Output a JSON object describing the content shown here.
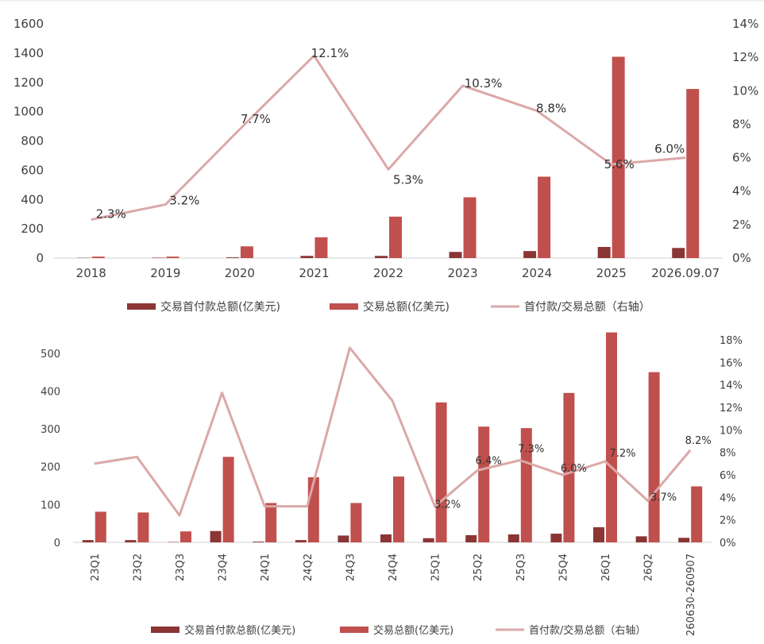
{
  "colors": {
    "deposit": "#8b3535",
    "total": "#c0504d",
    "ratio": "#dba8a8",
    "axis": "#d0d0d0",
    "topline": "#e0e0e0"
  },
  "chart_data": [
    {
      "type": "bar",
      "title": "",
      "categories": [
        "2018",
        "2019",
        "2020",
        "2021",
        "2022",
        "2023",
        "2024",
        "2025",
        "2026.09.07"
      ],
      "ylim": [
        0,
        1600
      ],
      "yticks": [
        "0",
        "200",
        "400",
        "600",
        "800",
        "1000",
        "1200",
        "1400",
        "1600"
      ],
      "y2lim": [
        0,
        0.14
      ],
      "y2ticks": [
        "0%",
        "2%",
        "4%",
        "6%",
        "8%",
        "10%",
        "12%",
        "14%"
      ],
      "series": [
        {
          "name": "交易首付款总额(亿美元)",
          "kind": "bar",
          "axis": "left",
          "values": [
            2,
            3,
            5,
            15,
            15,
            42,
            48,
            76,
            69
          ]
        },
        {
          "name": "交易总额(亿美元)",
          "kind": "bar",
          "axis": "left",
          "values": [
            10,
            10,
            80,
            142,
            283,
            415,
            556,
            1375,
            1155
          ]
        },
        {
          "name": "首付款/交易总额（右轴）",
          "kind": "line",
          "axis": "right",
          "values": [
            0.023,
            0.032,
            0.077,
            0.121,
            0.053,
            0.103,
            0.088,
            0.056,
            0.06
          ]
        }
      ],
      "data_labels": [
        "2.3%",
        "3.2%",
        "7.7%",
        "12.1%",
        "5.3%",
        "10.3%",
        "8.8%",
        "5.6%",
        "6.0%"
      ],
      "legend": {
        "position": "bottom",
        "items": [
          "交易首付款总额(亿美元)",
          "交易总额(亿美元)",
          "首付款/交易总额（右轴）"
        ]
      }
    },
    {
      "type": "bar",
      "title": "",
      "categories": [
        "23Q1",
        "23Q2",
        "23Q3",
        "23Q4",
        "24Q1",
        "24Q2",
        "24Q3",
        "24Q4",
        "25Q1",
        "25Q2",
        "25Q3",
        "25Q4",
        "26Q1",
        "26Q2",
        "260630-260907"
      ],
      "ylim": [
        0,
        550
      ],
      "yticks": [
        "0",
        "100",
        "200",
        "300",
        "400",
        "500"
      ],
      "y2lim": [
        0,
        0.185
      ],
      "y2ticks": [
        "0%",
        "2%",
        "4%",
        "6%",
        "8%",
        "10%",
        "12%",
        "14%",
        "16%",
        "18%"
      ],
      "series": [
        {
          "name": "交易首付款总额(亿美元)",
          "kind": "bar",
          "axis": "left",
          "values": [
            6,
            6,
            1,
            30,
            2,
            6,
            18,
            21,
            11,
            19,
            21,
            23,
            40,
            16,
            12
          ]
        },
        {
          "name": "交易总额(亿美元)",
          "kind": "bar",
          "axis": "left",
          "values": [
            81,
            79,
            29,
            226,
            104,
            172,
            104,
            174,
            370,
            306,
            302,
            395,
            555,
            450,
            148
          ]
        },
        {
          "name": "首付款/交易总额（右轴）",
          "kind": "line",
          "axis": "right",
          "values": [
            0.07,
            0.076,
            0.024,
            0.133,
            0.032,
            0.032,
            0.173,
            0.126,
            0.032,
            0.064,
            0.073,
            0.06,
            0.072,
            0.037,
            0.082
          ]
        }
      ],
      "data_labels": [
        "",
        "",
        "",
        "",
        "",
        "",
        "",
        "",
        "3.2%",
        "6.4%",
        "7.3%",
        "6.0%",
        "7.2%",
        "3.7%",
        "8.2%"
      ],
      "legend": {
        "position": "bottom",
        "items": [
          "交易首付款总额(亿美元)",
          "交易总额(亿美元)",
          "首付款/交易总额（右轴）"
        ]
      }
    }
  ]
}
